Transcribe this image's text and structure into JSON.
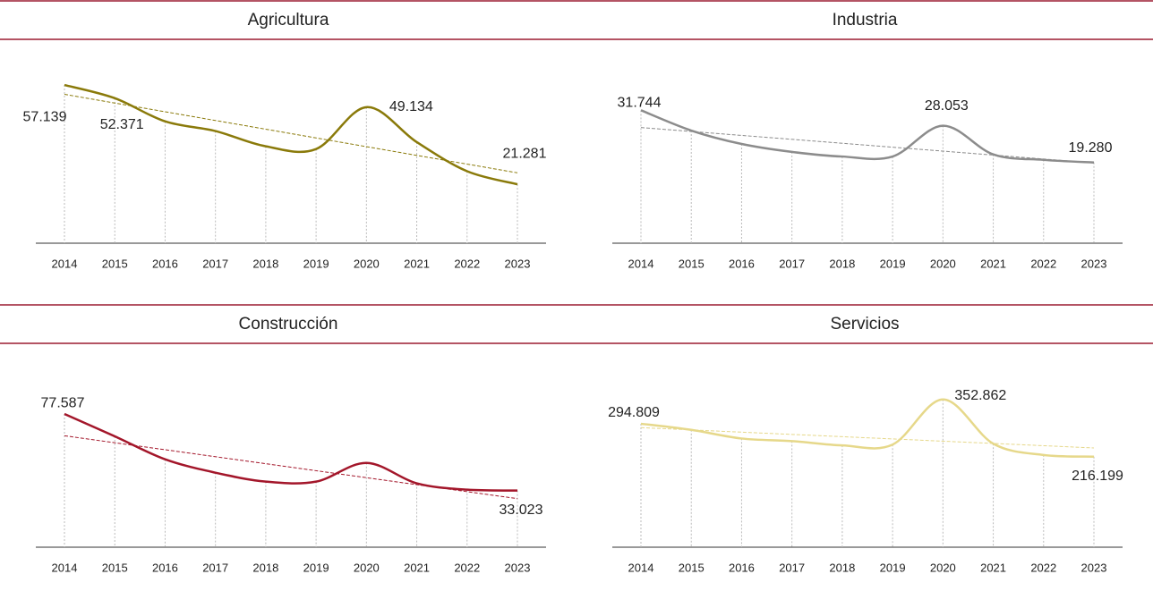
{
  "chart_data": [
    {
      "type": "line",
      "title": "Agricultura",
      "color": "#8a7a0a",
      "categories": [
        "2014",
        "2015",
        "2016",
        "2017",
        "2018",
        "2019",
        "2020",
        "2021",
        "2022",
        "2023"
      ],
      "values": [
        57139,
        52371,
        44000,
        40500,
        35000,
        34000,
        49134,
        36500,
        26000,
        21281
      ],
      "value_labels": [
        "57.139",
        "52.371",
        null,
        null,
        null,
        null,
        "49.134",
        null,
        null,
        "21.281"
      ],
      "ylim": [
        0,
        62000
      ]
    },
    {
      "type": "line",
      "title": "Industria",
      "color": "#8c8c8c",
      "categories": [
        "2014",
        "2015",
        "2016",
        "2017",
        "2018",
        "2019",
        "2020",
        "2021",
        "2022",
        "2023"
      ],
      "values": [
        31744,
        26900,
        23700,
        21800,
        20700,
        20700,
        28053,
        21200,
        19900,
        19280
      ],
      "value_labels": [
        "31.744",
        null,
        null,
        null,
        null,
        null,
        "28.053",
        null,
        null,
        "19.280"
      ],
      "ylim": [
        0,
        41000
      ]
    },
    {
      "type": "line",
      "title": "Construcción",
      "color": "#a3162a",
      "categories": [
        "2014",
        "2015",
        "2016",
        "2017",
        "2018",
        "2019",
        "2020",
        "2021",
        "2022",
        "2023"
      ],
      "values": [
        77587,
        64600,
        51200,
        43400,
        38200,
        38200,
        49100,
        37200,
        33500,
        33023
      ],
      "value_labels": [
        "77.587",
        null,
        null,
        null,
        null,
        null,
        null,
        null,
        null,
        "33.023"
      ],
      "ylim": [
        0,
        100000
      ]
    },
    {
      "type": "line",
      "title": "Servicios",
      "color": "#e6d88a",
      "categories": [
        "2014",
        "2015",
        "2016",
        "2017",
        "2018",
        "2019",
        "2020",
        "2021",
        "2022",
        "2023"
      ],
      "values": [
        294809,
        280300,
        259600,
        253400,
        243100,
        245100,
        352862,
        247200,
        220300,
        216199
      ],
      "value_labels": [
        "294.809",
        null,
        null,
        null,
        null,
        null,
        "352.862",
        null,
        null,
        "216.199"
      ],
      "ylim": [
        0,
        410000
      ]
    }
  ]
}
